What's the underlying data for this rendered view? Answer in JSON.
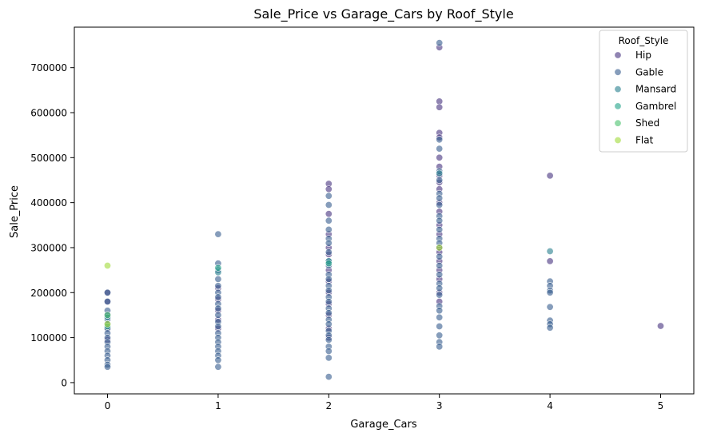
{
  "chart_data": {
    "type": "scatter",
    "title": "Sale_Price vs Garage_Cars by Roof_Style",
    "xlabel": "Garage_Cars",
    "ylabel": "Sale_Price",
    "xlim": [
      -0.3,
      5.3
    ],
    "ylim": [
      -25000,
      790000
    ],
    "xticks": [
      0,
      1,
      2,
      3,
      4,
      5
    ],
    "yticks": [
      0,
      100000,
      200000,
      300000,
      400000,
      500000,
      600000,
      700000
    ],
    "grid": false,
    "legend": {
      "title": "Roof_Style",
      "position": "top-right"
    },
    "series": [
      {
        "name": "Hip",
        "color": "#46327e",
        "points": [
          [
            0,
            200000
          ],
          [
            0,
            180000
          ],
          [
            0,
            150000
          ],
          [
            0,
            120000
          ],
          [
            0,
            95000
          ],
          [
            1,
            210000
          ],
          [
            1,
            185000
          ],
          [
            1,
            160000
          ],
          [
            1,
            140000
          ],
          [
            1,
            120000
          ],
          [
            2,
            442000
          ],
          [
            2,
            430000
          ],
          [
            2,
            375000
          ],
          [
            2,
            330000
          ],
          [
            2,
            300000
          ],
          [
            2,
            285000
          ],
          [
            2,
            250000
          ],
          [
            2,
            225000
          ],
          [
            2,
            200000
          ],
          [
            2,
            175000
          ],
          [
            2,
            150000
          ],
          [
            2,
            120000
          ],
          [
            2,
            100000
          ],
          [
            3,
            745000
          ],
          [
            3,
            625000
          ],
          [
            3,
            612000
          ],
          [
            3,
            555000
          ],
          [
            3,
            545000
          ],
          [
            3,
            500000
          ],
          [
            3,
            480000
          ],
          [
            3,
            460000
          ],
          [
            3,
            445000
          ],
          [
            3,
            430000
          ],
          [
            3,
            400000
          ],
          [
            3,
            380000
          ],
          [
            3,
            350000
          ],
          [
            3,
            330000
          ],
          [
            3,
            300000
          ],
          [
            3,
            290000
          ],
          [
            3,
            270000
          ],
          [
            3,
            250000
          ],
          [
            3,
            230000
          ],
          [
            3,
            200000
          ],
          [
            3,
            180000
          ],
          [
            4,
            460000
          ],
          [
            4,
            270000
          ],
          [
            5,
            126000
          ]
        ]
      },
      {
        "name": "Gable",
        "color": "#365c8d",
        "points": [
          [
            0,
            200000
          ],
          [
            0,
            180000
          ],
          [
            0,
            160000
          ],
          [
            0,
            150000
          ],
          [
            0,
            140000
          ],
          [
            0,
            130000
          ],
          [
            0,
            120000
          ],
          [
            0,
            110000
          ],
          [
            0,
            100000
          ],
          [
            0,
            90000
          ],
          [
            0,
            80000
          ],
          [
            0,
            70000
          ],
          [
            0,
            60000
          ],
          [
            0,
            50000
          ],
          [
            0,
            40000
          ],
          [
            0,
            35000
          ],
          [
            1,
            330000
          ],
          [
            1,
            265000
          ],
          [
            1,
            250000
          ],
          [
            1,
            230000
          ],
          [
            1,
            215000
          ],
          [
            1,
            200000
          ],
          [
            1,
            190000
          ],
          [
            1,
            175000
          ],
          [
            1,
            165000
          ],
          [
            1,
            150000
          ],
          [
            1,
            135000
          ],
          [
            1,
            125000
          ],
          [
            1,
            110000
          ],
          [
            1,
            100000
          ],
          [
            1,
            90000
          ],
          [
            1,
            80000
          ],
          [
            1,
            70000
          ],
          [
            1,
            60000
          ],
          [
            1,
            50000
          ],
          [
            1,
            35000
          ],
          [
            2,
            415000
          ],
          [
            2,
            395000
          ],
          [
            2,
            360000
          ],
          [
            2,
            340000
          ],
          [
            2,
            320000
          ],
          [
            2,
            310000
          ],
          [
            2,
            290000
          ],
          [
            2,
            270000
          ],
          [
            2,
            260000
          ],
          [
            2,
            240000
          ],
          [
            2,
            230000
          ],
          [
            2,
            215000
          ],
          [
            2,
            205000
          ],
          [
            2,
            190000
          ],
          [
            2,
            180000
          ],
          [
            2,
            165000
          ],
          [
            2,
            155000
          ],
          [
            2,
            140000
          ],
          [
            2,
            130000
          ],
          [
            2,
            115000
          ],
          [
            2,
            105000
          ],
          [
            2,
            95000
          ],
          [
            2,
            80000
          ],
          [
            2,
            70000
          ],
          [
            2,
            55000
          ],
          [
            2,
            13000
          ],
          [
            3,
            755000
          ],
          [
            3,
            540000
          ],
          [
            3,
            520000
          ],
          [
            3,
            470000
          ],
          [
            3,
            450000
          ],
          [
            3,
            420000
          ],
          [
            3,
            410000
          ],
          [
            3,
            395000
          ],
          [
            3,
            370000
          ],
          [
            3,
            360000
          ],
          [
            3,
            340000
          ],
          [
            3,
            320000
          ],
          [
            3,
            310000
          ],
          [
            3,
            280000
          ],
          [
            3,
            260000
          ],
          [
            3,
            240000
          ],
          [
            3,
            220000
          ],
          [
            3,
            210000
          ],
          [
            3,
            195000
          ],
          [
            3,
            170000
          ],
          [
            3,
            160000
          ],
          [
            3,
            145000
          ],
          [
            3,
            125000
          ],
          [
            3,
            105000
          ],
          [
            3,
            90000
          ],
          [
            3,
            80000
          ],
          [
            4,
            225000
          ],
          [
            4,
            215000
          ],
          [
            4,
            205000
          ],
          [
            4,
            200000
          ],
          [
            4,
            168000
          ],
          [
            4,
            138000
          ],
          [
            4,
            130000
          ],
          [
            4,
            122000
          ]
        ]
      },
      {
        "name": "Mansard",
        "color": "#277f8e",
        "points": [
          [
            0,
            145000
          ],
          [
            1,
            245000
          ],
          [
            2,
            270000
          ],
          [
            3,
            465000
          ],
          [
            4,
            292000
          ]
        ]
      },
      {
        "name": "Gambrel",
        "color": "#1fa187",
        "points": [
          [
            0,
            125000
          ],
          [
            1,
            255000
          ],
          [
            2,
            265000
          ]
        ]
      },
      {
        "name": "Shed",
        "color": "#4ac16d",
        "points": [
          [
            0,
            150000
          ]
        ]
      },
      {
        "name": "Flat",
        "color": "#a0da39",
        "points": [
          [
            0,
            260000
          ],
          [
            0,
            130000
          ],
          [
            3,
            300000
          ]
        ]
      }
    ]
  }
}
